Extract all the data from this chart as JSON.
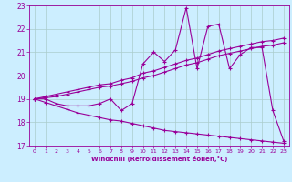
{
  "xlabel": "Windchill (Refroidissement éolien,°C)",
  "bg_color": "#cceeff",
  "line_color": "#990099",
  "grid_color": "#aacccc",
  "xlim": [
    -0.5,
    23.5
  ],
  "ylim": [
    17,
    23
  ],
  "xticks": [
    0,
    1,
    2,
    3,
    4,
    5,
    6,
    7,
    8,
    9,
    10,
    11,
    12,
    13,
    14,
    15,
    16,
    17,
    18,
    19,
    20,
    21,
    22,
    23
  ],
  "yticks": [
    17,
    18,
    19,
    20,
    21,
    22,
    23
  ],
  "series": [
    [
      19.0,
      19.0,
      18.8,
      18.7,
      18.7,
      18.7,
      18.8,
      19.0,
      18.5,
      18.8,
      20.5,
      21.0,
      20.6,
      21.1,
      22.9,
      20.3,
      22.1,
      22.2,
      20.3,
      20.9,
      21.2,
      21.2,
      18.5,
      17.2
    ],
    [
      19.0,
      19.1,
      19.2,
      19.3,
      19.4,
      19.5,
      19.6,
      19.65,
      19.8,
      19.9,
      20.1,
      20.2,
      20.35,
      20.5,
      20.65,
      20.75,
      20.9,
      21.05,
      21.15,
      21.25,
      21.35,
      21.45,
      21.5,
      21.6
    ],
    [
      19.0,
      19.05,
      19.1,
      19.2,
      19.3,
      19.4,
      19.5,
      19.55,
      19.65,
      19.75,
      19.9,
      20.0,
      20.15,
      20.3,
      20.45,
      20.55,
      20.7,
      20.85,
      20.95,
      21.05,
      21.15,
      21.25,
      21.3,
      21.4
    ],
    [
      19.0,
      18.85,
      18.7,
      18.55,
      18.4,
      18.3,
      18.2,
      18.1,
      18.05,
      17.95,
      17.85,
      17.75,
      17.65,
      17.6,
      17.55,
      17.5,
      17.45,
      17.4,
      17.35,
      17.3,
      17.25,
      17.2,
      17.15,
      17.1
    ]
  ]
}
